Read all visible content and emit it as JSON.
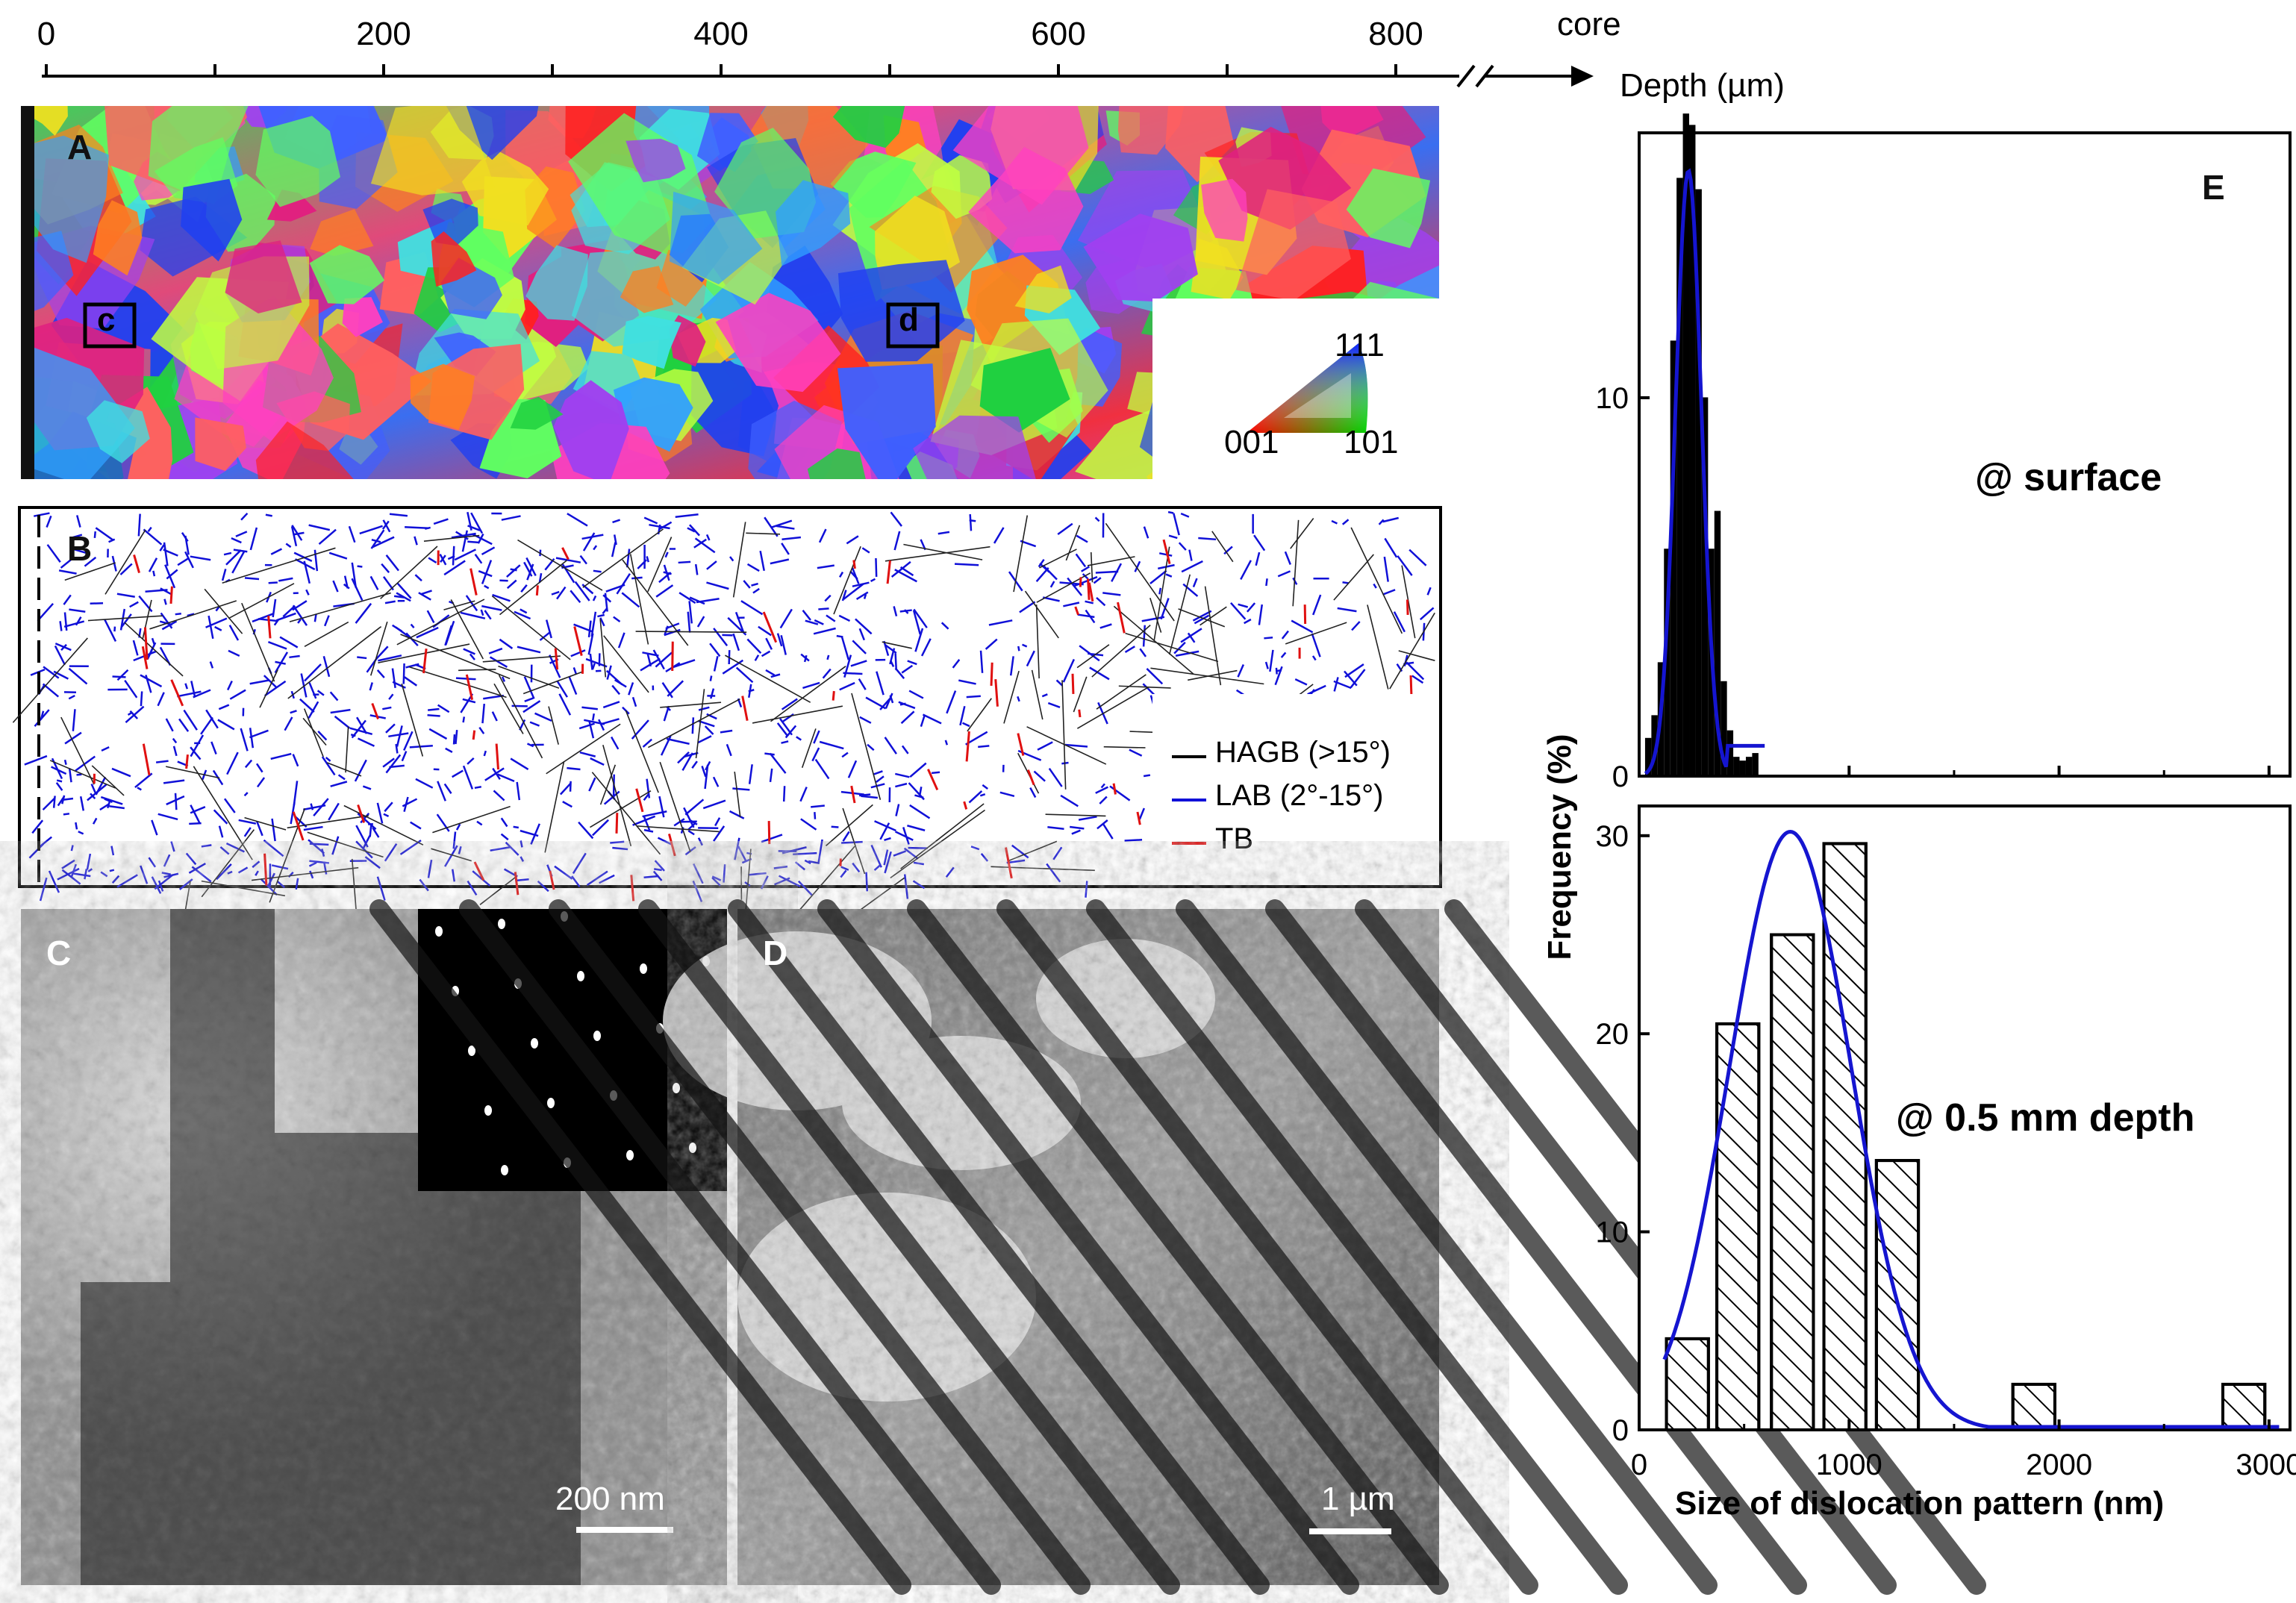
{
  "depth_axis": {
    "ticks": [
      "0",
      "200",
      "400",
      "600",
      "800"
    ],
    "end_label": "core",
    "title": "Depth (µm)"
  },
  "panel_A": {
    "letter": "A",
    "box_c": "c",
    "box_d": "d",
    "ipf_legend": {
      "top": "111",
      "left": "001",
      "right": "101"
    }
  },
  "panel_B": {
    "letter": "B",
    "legend": [
      {
        "label": "HAGB (>15°)",
        "color": "#000000"
      },
      {
        "label": "LAB (2°-15°)",
        "color": "#1010d8"
      },
      {
        "label": "TB",
        "color": "#e01010"
      }
    ]
  },
  "panel_C": {
    "letter": "C",
    "scale_bar": "200 nm"
  },
  "panel_D": {
    "letter": "D",
    "scale_bar": "1 µm"
  },
  "panel_E": {
    "letter": "E",
    "ylabel": "Frequency (%)",
    "xlabel": "Size of dislocation pattern (nm)",
    "top_annotation": "@ surface",
    "bottom_annotation": "@ 0.5 mm depth"
  },
  "chart_data": [
    {
      "type": "bar",
      "title": "",
      "annotation": "@ surface",
      "xlim": [
        0,
        3100
      ],
      "ylim": [
        0,
        17
      ],
      "yticks": [
        0,
        10
      ],
      "bin_width": 30,
      "x": [
        45,
        75,
        105,
        135,
        165,
        195,
        225,
        255,
        285,
        315,
        345,
        375,
        405,
        435,
        465,
        495,
        525,
        555
      ],
      "values": [
        1.0,
        1.6,
        3.0,
        6.0,
        11.5,
        15.8,
        17.5,
        17.2,
        15.5,
        10.0,
        6.0,
        7.0,
        2.5,
        1.2,
        0.5,
        0.4,
        0.5,
        0.6
      ],
      "fit": {
        "type": "gaussian",
        "mean": 235,
        "sigma": 62,
        "peak": 16.0,
        "color": "#1515d0"
      },
      "bar_color": "#000000"
    },
    {
      "type": "bar",
      "title": "",
      "annotation": "@ 0.5 mm depth",
      "xlim": [
        0,
        3100
      ],
      "ylim": [
        0,
        31.5
      ],
      "xticks": [
        0,
        1000,
        2000,
        3000
      ],
      "yticks": [
        0,
        10,
        20,
        30
      ],
      "x": [
        230,
        470,
        730,
        980,
        1230,
        1880,
        2880
      ],
      "bin_width": 200,
      "values": [
        4.6,
        20.5,
        25.0,
        29.6,
        13.6,
        2.3,
        2.3
      ],
      "bar_style": "hatched",
      "fit": {
        "type": "gaussian",
        "mean": 720,
        "sigma": 290,
        "peak": 30.2,
        "color": "#1515d0"
      }
    }
  ]
}
